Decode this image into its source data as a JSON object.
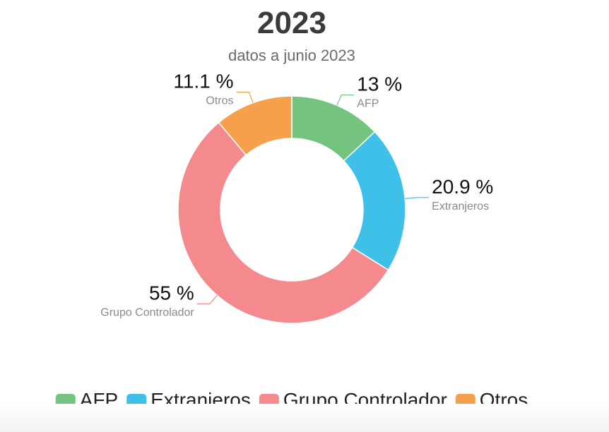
{
  "chart_data": {
    "type": "pie",
    "donut": true,
    "title": "2023",
    "subtitle": "datos a junio 2023",
    "slices": [
      {
        "name": "AFP",
        "value": 13,
        "label": "13 %",
        "color": "#74c480"
      },
      {
        "name": "Extranjeros",
        "value": 20.9,
        "label": "20.9 %",
        "color": "#3ec0e8"
      },
      {
        "name": "Grupo Controlador",
        "value": 55,
        "label": "55 %",
        "color": "#f48a8e"
      },
      {
        "name": "Otros",
        "value": 11.1,
        "label": "11.1 %",
        "color": "#f6a04c"
      }
    ],
    "legend_position": "bottom"
  }
}
